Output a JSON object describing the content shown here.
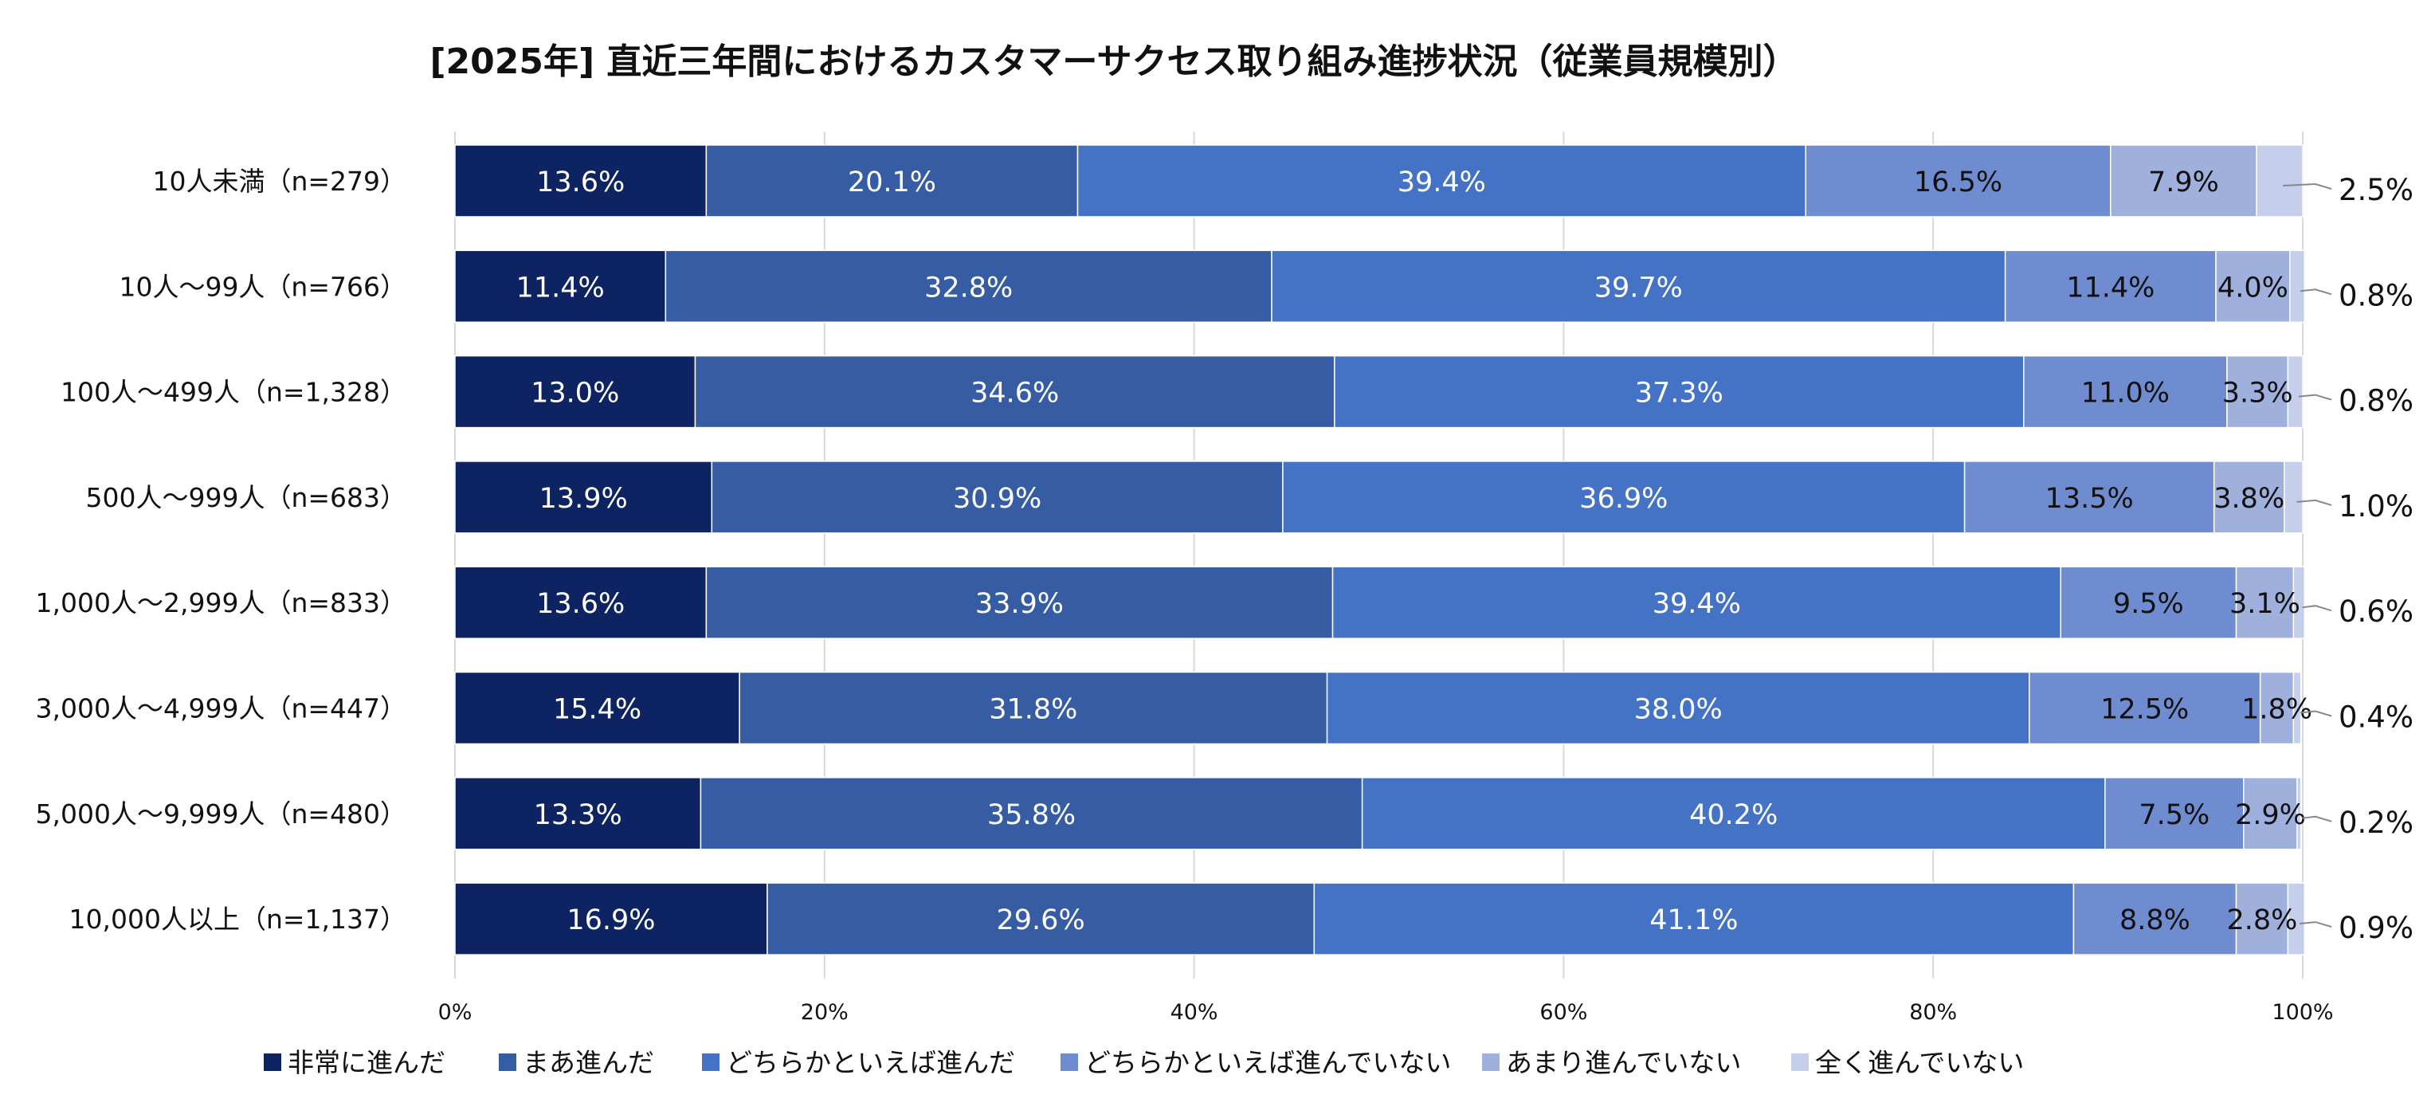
{
  "chart_data": {
    "type": "bar",
    "orientation": "horizontal",
    "stacked": true,
    "title": "[2025年] 直近三年間におけるカスタマーサクセス取り組み進捗状況（従業員規模別）",
    "categories": [
      "10人未満（n=279）",
      "10人～99人（n=766）",
      "100人～499人（n=1,328）",
      "500人～999人（n=683）",
      "1,000人～2,999人（n=833）",
      "3,000人～4,999人（n=447）",
      "5,000人～9,999人（n=480）",
      "10,000人以上（n=1,137）"
    ],
    "series": [
      {
        "name": "非常に進んだ",
        "color": "#0e2462",
        "label_color": "#ffffff",
        "values": [
          13.6,
          11.4,
          13.0,
          13.9,
          13.6,
          15.4,
          13.3,
          16.9
        ],
        "labels": [
          "13.6%",
          "11.4%",
          "13.0%",
          "13.9%",
          "13.6%",
          "15.4%",
          "13.3%",
          "16.9%"
        ]
      },
      {
        "name": "まあ進んだ",
        "color": "#365da3",
        "label_color": "#ffffff",
        "values": [
          20.1,
          32.8,
          34.6,
          30.9,
          33.9,
          31.8,
          35.8,
          29.6
        ],
        "labels": [
          "20.1%",
          "32.8%",
          "34.6%",
          "30.9%",
          "33.9%",
          "31.8%",
          "35.8%",
          "29.6%"
        ]
      },
      {
        "name": "どちらかといえば進んだ",
        "color": "#4472c4",
        "label_color": "#ffffff",
        "values": [
          39.4,
          39.7,
          37.3,
          36.9,
          39.4,
          38.0,
          40.2,
          41.1
        ],
        "labels": [
          "39.4%",
          "39.7%",
          "37.3%",
          "36.9%",
          "39.4%",
          "38.0%",
          "40.2%",
          "41.1%"
        ]
      },
      {
        "name": "どちらかといえば進んでいない",
        "color": "#6f8cd0",
        "label_color": "#111111",
        "values": [
          16.5,
          11.4,
          11.0,
          13.5,
          9.5,
          12.5,
          7.5,
          8.8
        ],
        "labels": [
          "16.5%",
          "11.4%",
          "11.0%",
          "13.5%",
          "9.5%",
          "12.5%",
          "7.5%",
          "8.8%"
        ]
      },
      {
        "name": "あまり進んでいない",
        "color": "#9fb0dd",
        "label_color": "#111111",
        "values": [
          7.9,
          4.0,
          3.3,
          3.8,
          3.1,
          1.8,
          2.9,
          2.8
        ],
        "labels": [
          "7.9%",
          "4.0%",
          "3.3%",
          "3.8%",
          "3.1%",
          "1.8%",
          "2.9%",
          "2.8%"
        ]
      },
      {
        "name": "全く進んでいない",
        "color": "#c5ceea",
        "label_color": "#111111",
        "values": [
          2.5,
          0.8,
          0.8,
          1.0,
          0.6,
          0.4,
          0.2,
          0.9
        ],
        "labels": [
          "2.5%",
          "0.8%",
          "0.8%",
          "1.0%",
          "0.6%",
          "0.4%",
          "0.2%",
          "0.9%"
        ]
      }
    ],
    "xlim": [
      0,
      100
    ],
    "x_ticks": [
      0,
      20,
      40,
      60,
      80,
      100
    ],
    "x_tick_labels": [
      "0%",
      "20%",
      "40%",
      "60%",
      "80%",
      "100%"
    ],
    "grid": true,
    "legend_position": "bottom"
  }
}
